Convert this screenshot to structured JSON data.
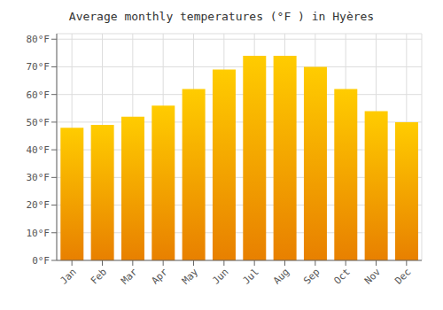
{
  "chart_data": {
    "type": "bar",
    "title": "Average monthly temperatures (°F ) in Hyères",
    "categories": [
      "Jan",
      "Feb",
      "Mar",
      "Apr",
      "May",
      "Jun",
      "Jul",
      "Aug",
      "Sep",
      "Oct",
      "Nov",
      "Dec"
    ],
    "values": [
      48,
      49,
      52,
      56,
      62,
      69,
      74,
      74,
      70,
      62,
      54,
      50
    ],
    "color": "#FFCC00",
    "ylim": [
      0,
      82
    ],
    "yticks": [
      {
        "value": 0,
        "label": "0°F"
      },
      {
        "value": 10,
        "label": "10°F"
      },
      {
        "value": 20,
        "label": "20°F"
      },
      {
        "value": 30,
        "label": "30°F"
      },
      {
        "value": 40,
        "label": "40°F"
      },
      {
        "value": 50,
        "label": "50°F"
      },
      {
        "value": 60,
        "label": "60°F"
      },
      {
        "value": 70,
        "label": "70°F"
      },
      {
        "value": 80,
        "label": "80°F"
      }
    ],
    "grid": true
  }
}
